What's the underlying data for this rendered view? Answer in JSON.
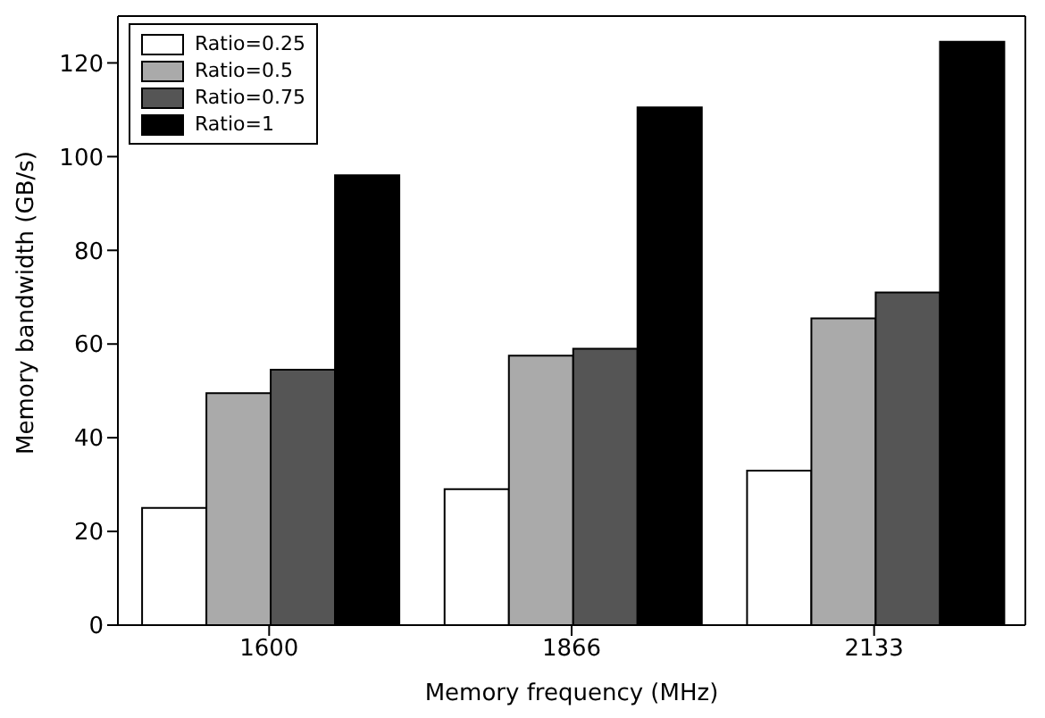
{
  "chart_data": {
    "type": "bar",
    "xlabel": "Memory frequency (MHz)",
    "ylabel": "Memory bandwidth (GB/s)",
    "categories": [
      "1600",
      "1866",
      "2133"
    ],
    "series": [
      {
        "name": "Ratio=0.25",
        "color": "#ffffff",
        "values": [
          25,
          29,
          33
        ]
      },
      {
        "name": "Ratio=0.5",
        "color": "#aaaaaa",
        "values": [
          49.5,
          57.5,
          65.5
        ]
      },
      {
        "name": "Ratio=0.75",
        "color": "#555555",
        "values": [
          54.5,
          59,
          71
        ]
      },
      {
        "name": "Ratio=1",
        "color": "#000000",
        "values": [
          96,
          110.5,
          124.5
        ]
      }
    ],
    "ylim": [
      0,
      130
    ],
    "yticks": [
      0,
      20,
      40,
      60,
      80,
      100,
      120
    ],
    "legend": "top left"
  }
}
